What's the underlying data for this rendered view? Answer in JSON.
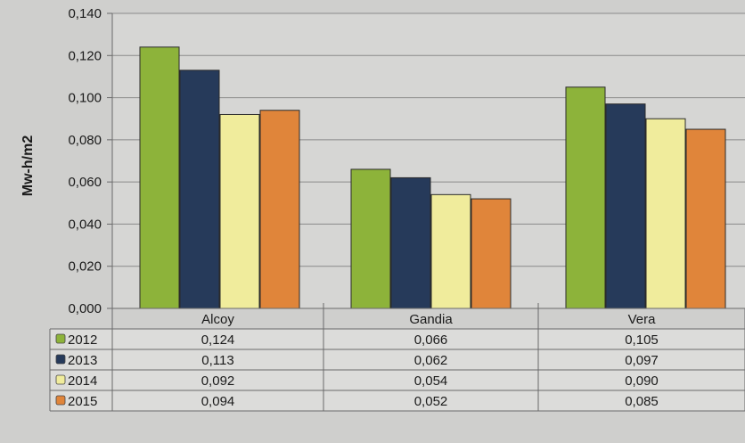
{
  "chart_data": {
    "type": "bar",
    "categories": [
      "Alcoy",
      "Gandia",
      "Vera"
    ],
    "series": [
      {
        "name": "2012",
        "values": [
          0.124,
          0.066,
          0.105
        ],
        "color": "#8db33a"
      },
      {
        "name": "2013",
        "values": [
          0.113,
          0.062,
          0.097
        ],
        "color": "#263a5a"
      },
      {
        "name": "2014",
        "values": [
          0.092,
          0.054,
          0.09
        ],
        "color": "#f0ec9c"
      },
      {
        "name": "2015",
        "values": [
          0.094,
          0.052,
          0.085
        ],
        "color": "#e0853a"
      }
    ],
    "table_values": [
      [
        "0,124",
        "0,066",
        "0,105"
      ],
      [
        "0,113",
        "0,062",
        "0,097"
      ],
      [
        "0,092",
        "0,054",
        "0,090"
      ],
      [
        "0,094",
        "0,052",
        "0,085"
      ]
    ],
    "ylabel": "Mw-h/m2",
    "ylim": [
      0,
      0.14
    ],
    "yticks": [
      {
        "value": 0.14,
        "label": "0,140"
      },
      {
        "value": 0.12,
        "label": "0,120"
      },
      {
        "value": 0.1,
        "label": "0,100"
      },
      {
        "value": 0.08,
        "label": "0,080"
      },
      {
        "value": 0.06,
        "label": "0,060"
      },
      {
        "value": 0.04,
        "label": "0,040"
      },
      {
        "value": 0.02,
        "label": "0,020"
      },
      {
        "value": 0.0,
        "label": "0,000"
      }
    ],
    "grid": true,
    "legend": "data-table"
  }
}
